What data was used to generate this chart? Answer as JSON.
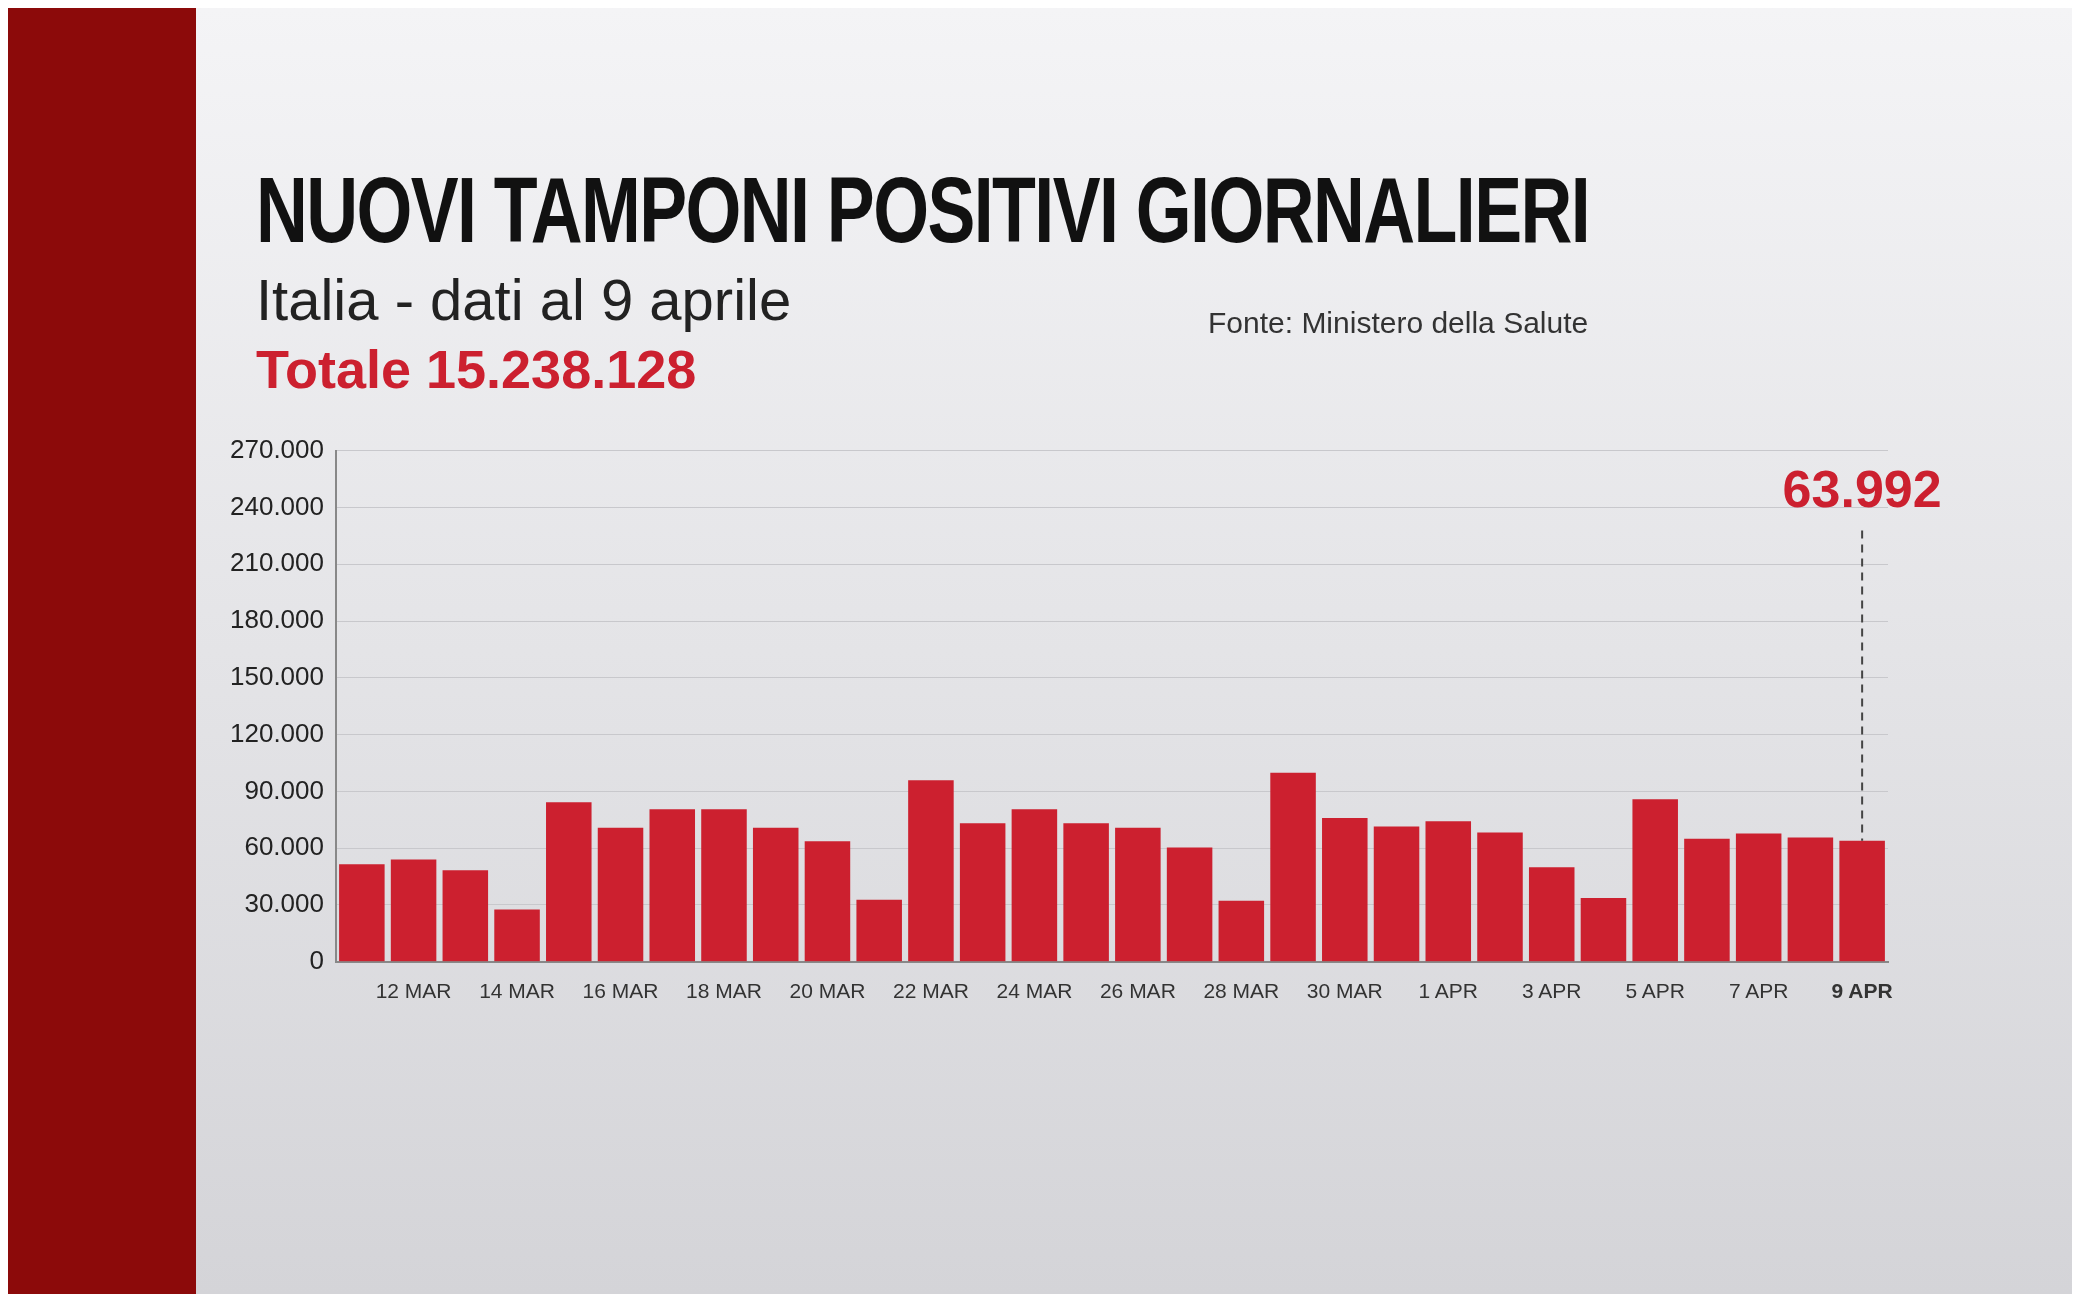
{
  "chart_data": {
    "type": "bar",
    "title": "NUOVI TAMPONI POSITIVI GIORNALIERI",
    "subtitle": "Italia - dati al 9 aprile",
    "categories": [
      null,
      "12 MAR",
      null,
      "14 MAR",
      null,
      "16 MAR",
      null,
      "18 MAR",
      null,
      "20 MAR",
      null,
      "22 MAR",
      null,
      "24 MAR",
      null,
      "26 MAR",
      null,
      "28 MAR",
      null,
      "30 MAR",
      null,
      "1 APR",
      null,
      "3 APR",
      null,
      "5 APR",
      null,
      "7 APR",
      null,
      "9 APR"
    ],
    "values": [
      51500,
      54000,
      48400,
      27600,
      84300,
      70800,
      80600,
      80600,
      70800,
      63700,
      32800,
      95900,
      73200,
      80600,
      73200,
      70800,
      60400,
      32200,
      99900,
      76000,
      71400,
      74200,
      68300,
      50000,
      33700,
      85800,
      65000,
      67700,
      65600,
      63992
    ],
    "color": "#cc202f",
    "ylim": [
      0,
      270000
    ],
    "yticks": [
      {
        "value": 0,
        "label": "0"
      },
      {
        "value": 30000,
        "label": "30.000"
      },
      {
        "value": 60000,
        "label": "60.000"
      },
      {
        "value": 90000,
        "label": "90.000"
      },
      {
        "value": 120000,
        "label": "120.000"
      },
      {
        "value": 150000,
        "label": "150.000"
      },
      {
        "value": 180000,
        "label": "180.000"
      },
      {
        "value": 210000,
        "label": "210.000"
      },
      {
        "value": 240000,
        "label": "240.000"
      },
      {
        "value": 270000,
        "label": "270.000"
      }
    ],
    "grid": "y",
    "legend": false,
    "annotations": [
      "Totale 15.238.128",
      "Fonte: Ministero della Salute",
      {
        "text": "63.992",
        "x": "9 APR",
        "y": 63992
      }
    ]
  }
}
